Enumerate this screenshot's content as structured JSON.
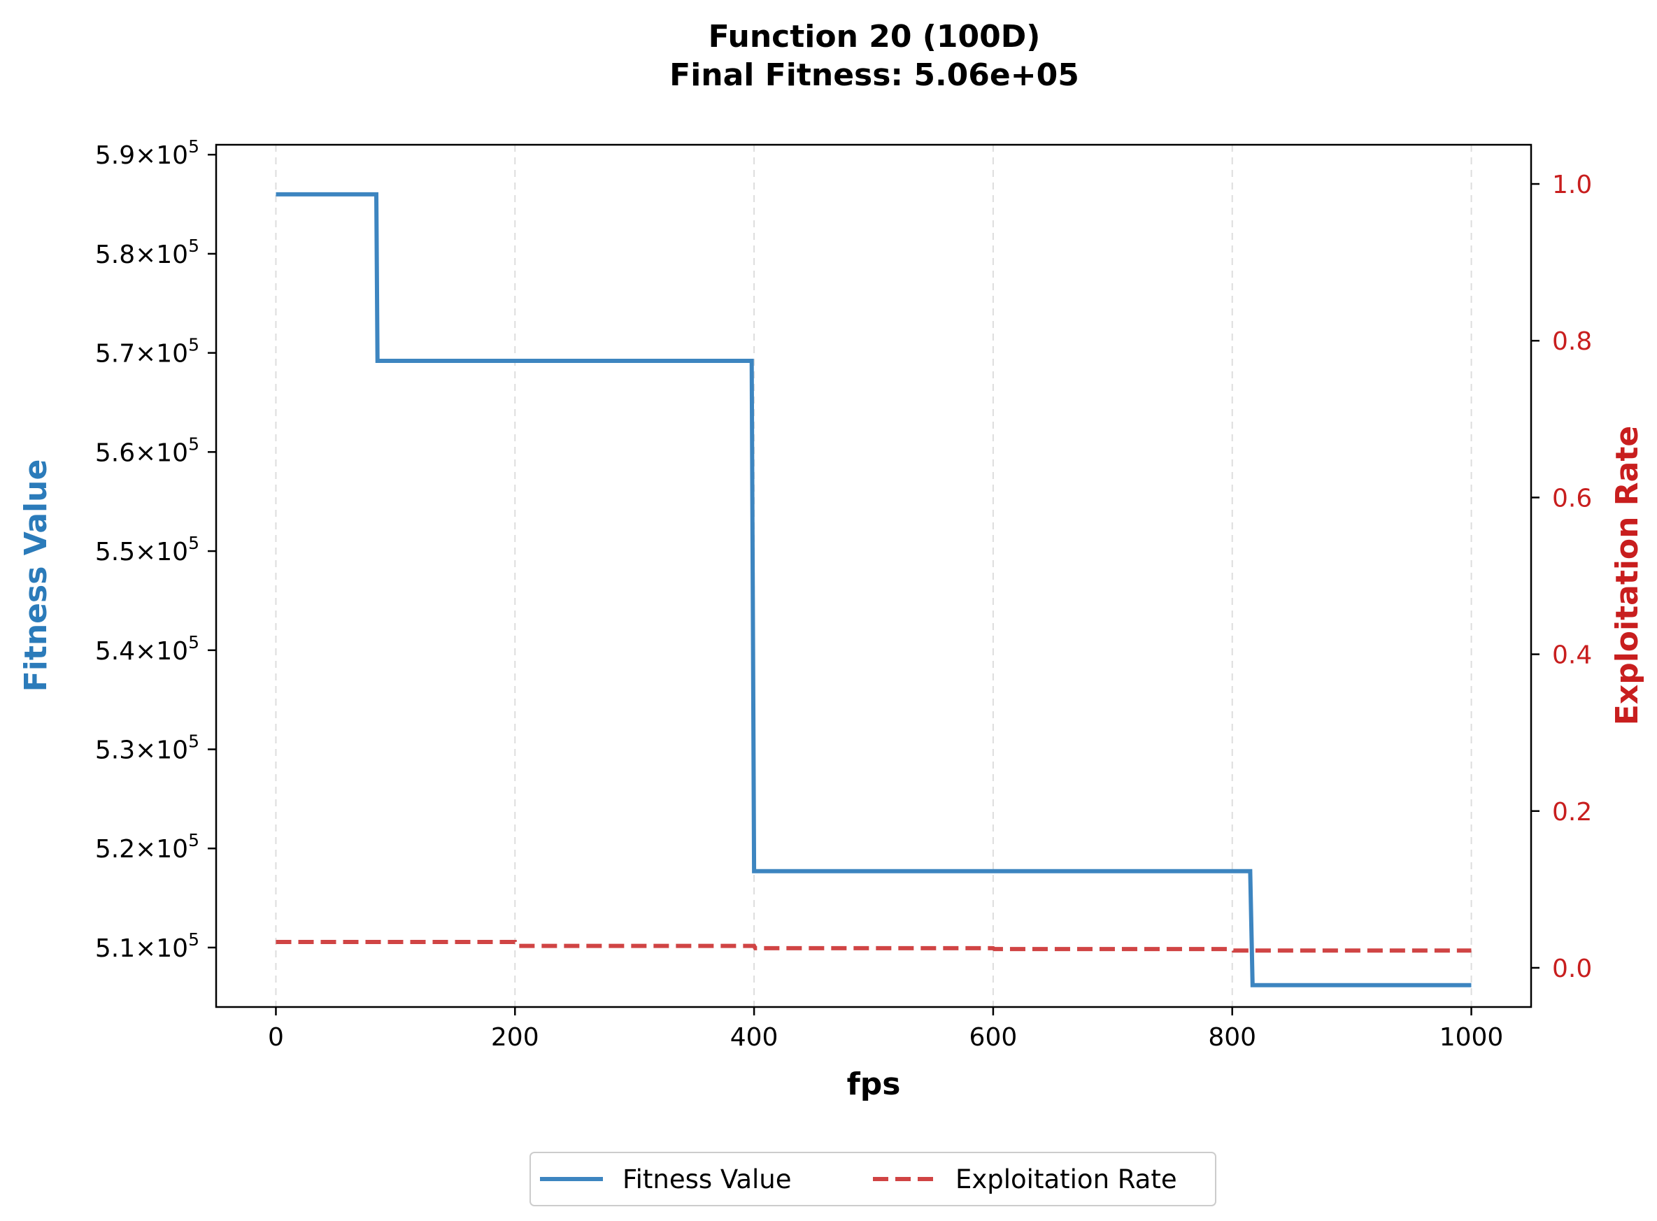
{
  "chart_data": {
    "type": "line",
    "title": "Function 20 (100D)",
    "subtitle": "Final Fitness: 5.06e+05",
    "xlabel": "fps",
    "ylabel_left": "Fitness Value",
    "ylabel_right": "Exploitation Rate",
    "xlim": [
      -50,
      1050
    ],
    "ylim_left": [
      504000,
      591000
    ],
    "ylim_right": [
      -0.05,
      1.05
    ],
    "x_ticks": [
      0,
      200,
      400,
      600,
      800,
      1000
    ],
    "x_tick_labels": [
      "0",
      "200",
      "400",
      "600",
      "800",
      "1000"
    ],
    "y_left_ticks": [
      510000,
      520000,
      530000,
      540000,
      550000,
      560000,
      570000,
      580000,
      590000
    ],
    "y_left_tick_labels": [
      {
        "mantissa": "5.1",
        "base": "10",
        "exp": "5"
      },
      {
        "mantissa": "5.2",
        "base": "10",
        "exp": "5"
      },
      {
        "mantissa": "5.3",
        "base": "10",
        "exp": "5"
      },
      {
        "mantissa": "5.4",
        "base": "10",
        "exp": "5"
      },
      {
        "mantissa": "5.5",
        "base": "10",
        "exp": "5"
      },
      {
        "mantissa": "5.6",
        "base": "10",
        "exp": "5"
      },
      {
        "mantissa": "5.7",
        "base": "10",
        "exp": "5"
      },
      {
        "mantissa": "5.8",
        "base": "10",
        "exp": "5"
      },
      {
        "mantissa": "5.9",
        "base": "10",
        "exp": "5"
      }
    ],
    "y_right_ticks": [
      0.0,
      0.2,
      0.4,
      0.6,
      0.8,
      1.0
    ],
    "y_right_tick_labels": [
      "0.0",
      "0.2",
      "0.4",
      "0.6",
      "0.8",
      "1.0"
    ],
    "grid": "vertical dashed",
    "legend_placement": "bottom-center",
    "series": [
      {
        "name": "Fitness Value",
        "axis": "left",
        "style": "solid",
        "color": "#3d85c0",
        "points": [
          [
            0,
            586000
          ],
          [
            84,
            586000
          ],
          [
            85,
            569200
          ],
          [
            398,
            569200
          ],
          [
            400,
            517700
          ],
          [
            815,
            517700
          ],
          [
            817,
            506200
          ],
          [
            1000,
            506200
          ]
        ]
      },
      {
        "name": "Exploitation Rate",
        "axis": "right",
        "style": "dashed",
        "color": "#d04444",
        "points": [
          [
            0,
            0.033
          ],
          [
            200,
            0.033
          ],
          [
            201,
            0.028
          ],
          [
            400,
            0.028
          ],
          [
            401,
            0.025
          ],
          [
            600,
            0.025
          ],
          [
            601,
            0.024
          ],
          [
            800,
            0.024
          ],
          [
            801,
            0.022
          ],
          [
            1000,
            0.022
          ]
        ]
      }
    ]
  }
}
